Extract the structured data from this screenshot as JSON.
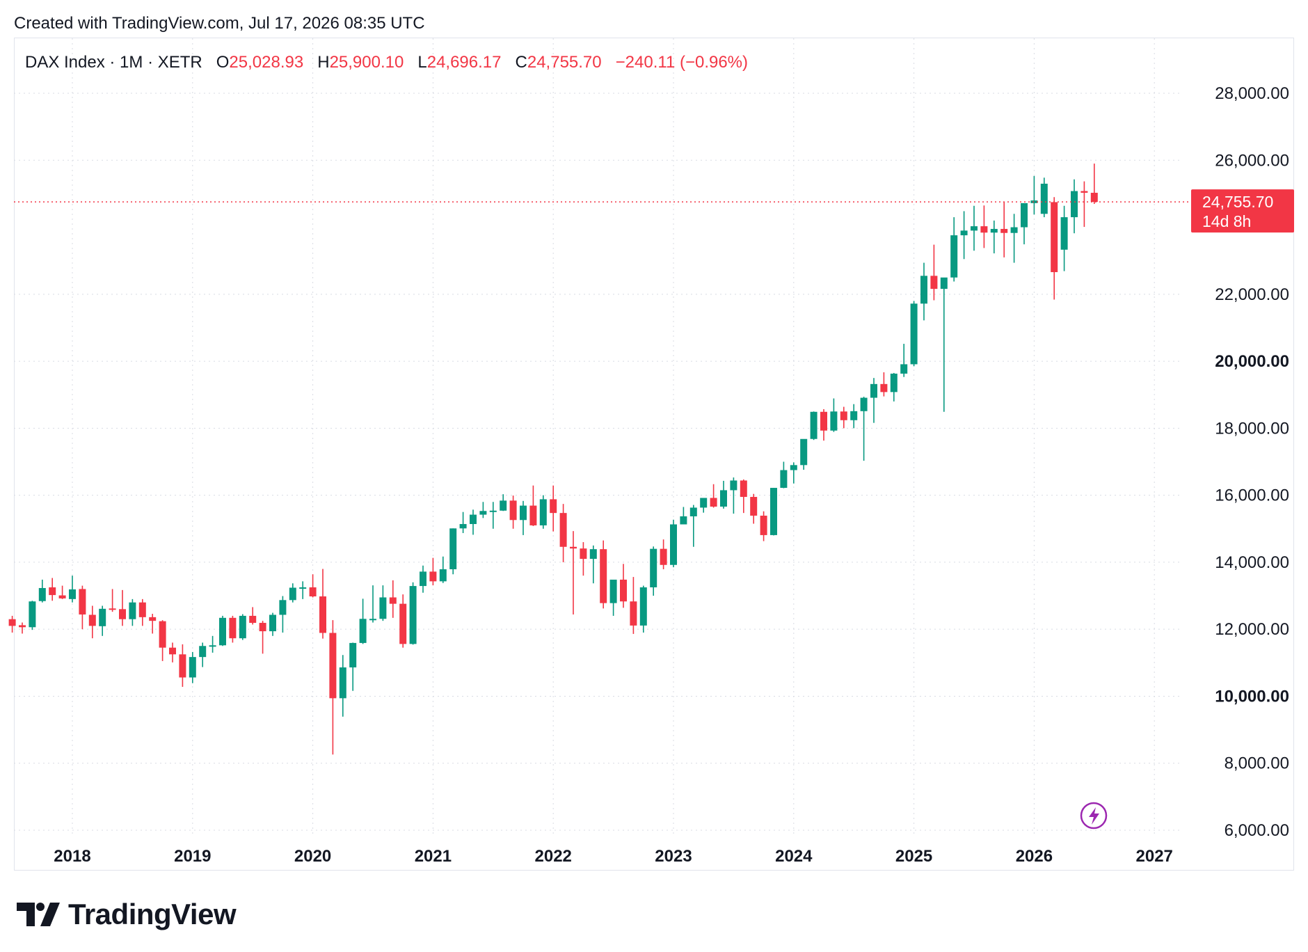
{
  "header": {
    "created_text": "Created with TradingView.com, Jul 17, 2026 08:35 UTC"
  },
  "legend": {
    "symbol": "DAX Index · 1M · XETR",
    "o_label": "O",
    "o_value": "25,028.93",
    "h_label": "H",
    "h_value": "25,900.10",
    "l_label": "L",
    "l_value": "24,696.17",
    "c_label": "C",
    "c_value": "24,755.70",
    "change": "−240.11 (−0.96%)"
  },
  "price_tag": {
    "price": "24,755.70",
    "countdown": "14d 8h"
  },
  "brand": {
    "name": "TradingView"
  },
  "colors": {
    "up": "#089981",
    "down": "#f23645",
    "grid": "#d8dbe3",
    "text": "#131722",
    "accent_purple": "#9c27b0"
  },
  "icons": [
    "flash-icon",
    "tradingview-logo-icon"
  ],
  "chart_data": {
    "type": "candlestick",
    "timeframe": "1M",
    "ylim": [
      6000,
      28000
    ],
    "y_ticks": [
      {
        "value": 28000,
        "label": "28,000.00",
        "bold": false
      },
      {
        "value": 26000,
        "label": "26,000.00",
        "bold": false
      },
      {
        "value": 22000,
        "label": "22,000.00",
        "bold": false
      },
      {
        "value": 20000,
        "label": "20,000.00",
        "bold": true
      },
      {
        "value": 18000,
        "label": "18,000.00",
        "bold": false
      },
      {
        "value": 16000,
        "label": "16,000.00",
        "bold": false
      },
      {
        "value": 14000,
        "label": "14,000.00",
        "bold": false
      },
      {
        "value": 12000,
        "label": "12,000.00",
        "bold": false
      },
      {
        "value": 10000,
        "label": "10,000.00",
        "bold": true
      },
      {
        "value": 8000,
        "label": "8,000.00",
        "bold": false
      },
      {
        "value": 6000,
        "label": "6,000.00",
        "bold": false
      }
    ],
    "x_ticks": [
      "2018",
      "2019",
      "2020",
      "2021",
      "2022",
      "2023",
      "2024",
      "2025",
      "2026",
      "2027"
    ],
    "last_price": 24755.7,
    "candles": [
      {
        "date": "2017-07",
        "o": 12300,
        "h": 12400,
        "l": 11900,
        "c": 12100
      },
      {
        "date": "2017-08",
        "o": 12120,
        "h": 12200,
        "l": 11870,
        "c": 12060
      },
      {
        "date": "2017-09",
        "o": 12060,
        "h": 12850,
        "l": 11980,
        "c": 12830
      },
      {
        "date": "2017-10",
        "o": 12840,
        "h": 13480,
        "l": 12800,
        "c": 13230
      },
      {
        "date": "2017-11",
        "o": 13250,
        "h": 13530,
        "l": 12850,
        "c": 13020
      },
      {
        "date": "2017-12",
        "o": 13010,
        "h": 13300,
        "l": 12900,
        "c": 12920
      },
      {
        "date": "2018-01",
        "o": 12900,
        "h": 13600,
        "l": 12800,
        "c": 13190
      },
      {
        "date": "2018-02",
        "o": 13200,
        "h": 13300,
        "l": 12000,
        "c": 12440
      },
      {
        "date": "2018-03",
        "o": 12430,
        "h": 12700,
        "l": 11730,
        "c": 12100
      },
      {
        "date": "2018-04",
        "o": 12090,
        "h": 12700,
        "l": 11800,
        "c": 12610
      },
      {
        "date": "2018-05",
        "o": 12620,
        "h": 13200,
        "l": 12520,
        "c": 12600
      },
      {
        "date": "2018-06",
        "o": 12600,
        "h": 13170,
        "l": 12100,
        "c": 12300
      },
      {
        "date": "2018-07",
        "o": 12300,
        "h": 12900,
        "l": 12100,
        "c": 12800
      },
      {
        "date": "2018-08",
        "o": 12800,
        "h": 12900,
        "l": 12100,
        "c": 12360
      },
      {
        "date": "2018-09",
        "o": 12360,
        "h": 12460,
        "l": 11870,
        "c": 12250
      },
      {
        "date": "2018-10",
        "o": 12240,
        "h": 12270,
        "l": 11050,
        "c": 11450
      },
      {
        "date": "2018-11",
        "o": 11450,
        "h": 11600,
        "l": 11010,
        "c": 11250
      },
      {
        "date": "2018-12",
        "o": 11250,
        "h": 11550,
        "l": 10280,
        "c": 10560
      },
      {
        "date": "2019-01",
        "o": 10560,
        "h": 11320,
        "l": 10390,
        "c": 11170
      },
      {
        "date": "2019-02",
        "o": 11170,
        "h": 11600,
        "l": 10870,
        "c": 11500
      },
      {
        "date": "2019-03",
        "o": 11500,
        "h": 11800,
        "l": 11300,
        "c": 11520
      },
      {
        "date": "2019-04",
        "o": 11520,
        "h": 12400,
        "l": 11500,
        "c": 12340
      },
      {
        "date": "2019-05",
        "o": 12340,
        "h": 12400,
        "l": 11600,
        "c": 11730
      },
      {
        "date": "2019-06",
        "o": 11730,
        "h": 12450,
        "l": 11680,
        "c": 12400
      },
      {
        "date": "2019-07",
        "o": 12400,
        "h": 12660,
        "l": 12140,
        "c": 12190
      },
      {
        "date": "2019-08",
        "o": 12190,
        "h": 12250,
        "l": 11270,
        "c": 11940
      },
      {
        "date": "2019-09",
        "o": 11940,
        "h": 12490,
        "l": 11800,
        "c": 12430
      },
      {
        "date": "2019-10",
        "o": 12430,
        "h": 12990,
        "l": 11900,
        "c": 12870
      },
      {
        "date": "2019-11",
        "o": 12870,
        "h": 13370,
        "l": 12800,
        "c": 13240
      },
      {
        "date": "2019-12",
        "o": 13240,
        "h": 13430,
        "l": 12900,
        "c": 13250
      },
      {
        "date": "2020-01",
        "o": 13250,
        "h": 13640,
        "l": 12950,
        "c": 12980
      },
      {
        "date": "2020-02",
        "o": 12980,
        "h": 13800,
        "l": 11720,
        "c": 11890
      },
      {
        "date": "2020-03",
        "o": 11890,
        "h": 12270,
        "l": 8260,
        "c": 9940
      },
      {
        "date": "2020-04",
        "o": 9940,
        "h": 11230,
        "l": 9390,
        "c": 10860
      },
      {
        "date": "2020-05",
        "o": 10860,
        "h": 11600,
        "l": 10160,
        "c": 11590
      },
      {
        "date": "2020-06",
        "o": 11590,
        "h": 12910,
        "l": 11560,
        "c": 12310
      },
      {
        "date": "2020-07",
        "o": 12310,
        "h": 13310,
        "l": 12200,
        "c": 12310
      },
      {
        "date": "2020-08",
        "o": 12310,
        "h": 13310,
        "l": 12250,
        "c": 12950
      },
      {
        "date": "2020-09",
        "o": 12950,
        "h": 13460,
        "l": 12340,
        "c": 12760
      },
      {
        "date": "2020-10",
        "o": 12760,
        "h": 13040,
        "l": 11450,
        "c": 11560
      },
      {
        "date": "2020-11",
        "o": 11560,
        "h": 13400,
        "l": 11540,
        "c": 13290
      },
      {
        "date": "2020-12",
        "o": 13290,
        "h": 13900,
        "l": 13090,
        "c": 13720
      },
      {
        "date": "2021-01",
        "o": 13720,
        "h": 14130,
        "l": 13310,
        "c": 13430
      },
      {
        "date": "2021-02",
        "o": 13430,
        "h": 14170,
        "l": 13380,
        "c": 13790
      },
      {
        "date": "2021-03",
        "o": 13790,
        "h": 15010,
        "l": 13640,
        "c": 15010
      },
      {
        "date": "2021-04",
        "o": 15010,
        "h": 15500,
        "l": 14870,
        "c": 15140
      },
      {
        "date": "2021-05",
        "o": 15140,
        "h": 15570,
        "l": 14820,
        "c": 15420
      },
      {
        "date": "2021-06",
        "o": 15420,
        "h": 15800,
        "l": 15320,
        "c": 15530
      },
      {
        "date": "2021-07",
        "o": 15530,
        "h": 15800,
        "l": 15000,
        "c": 15540
      },
      {
        "date": "2021-08",
        "o": 15540,
        "h": 16030,
        "l": 15530,
        "c": 15840
      },
      {
        "date": "2021-09",
        "o": 15840,
        "h": 15990,
        "l": 15000,
        "c": 15260
      },
      {
        "date": "2021-10",
        "o": 15260,
        "h": 15830,
        "l": 14810,
        "c": 15690
      },
      {
        "date": "2021-11",
        "o": 15690,
        "h": 16290,
        "l": 15080,
        "c": 15100
      },
      {
        "date": "2021-12",
        "o": 15100,
        "h": 16000,
        "l": 15000,
        "c": 15880
      },
      {
        "date": "2022-01",
        "o": 15880,
        "h": 16290,
        "l": 14920,
        "c": 15470
      },
      {
        "date": "2022-02",
        "o": 15470,
        "h": 15740,
        "l": 14000,
        "c": 14460
      },
      {
        "date": "2022-03",
        "o": 14460,
        "h": 14930,
        "l": 12440,
        "c": 14410
      },
      {
        "date": "2022-04",
        "o": 14410,
        "h": 14600,
        "l": 13600,
        "c": 14100
      },
      {
        "date": "2022-05",
        "o": 14100,
        "h": 14500,
        "l": 13370,
        "c": 14390
      },
      {
        "date": "2022-06",
        "o": 14390,
        "h": 14650,
        "l": 12620,
        "c": 12780
      },
      {
        "date": "2022-07",
        "o": 12780,
        "h": 13380,
        "l": 12400,
        "c": 13480
      },
      {
        "date": "2022-08",
        "o": 13480,
        "h": 13950,
        "l": 12640,
        "c": 12830
      },
      {
        "date": "2022-09",
        "o": 12830,
        "h": 13560,
        "l": 11860,
        "c": 12110
      },
      {
        "date": "2022-10",
        "o": 12110,
        "h": 13300,
        "l": 11900,
        "c": 13250
      },
      {
        "date": "2022-11",
        "o": 13250,
        "h": 14470,
        "l": 13000,
        "c": 14400
      },
      {
        "date": "2022-12",
        "o": 14400,
        "h": 14680,
        "l": 13790,
        "c": 13920
      },
      {
        "date": "2023-01",
        "o": 13920,
        "h": 15270,
        "l": 13850,
        "c": 15130
      },
      {
        "date": "2023-02",
        "o": 15130,
        "h": 15650,
        "l": 15140,
        "c": 15370
      },
      {
        "date": "2023-03",
        "o": 15370,
        "h": 15710,
        "l": 14460,
        "c": 15630
      },
      {
        "date": "2023-04",
        "o": 15630,
        "h": 15920,
        "l": 15480,
        "c": 15920
      },
      {
        "date": "2023-05",
        "o": 15920,
        "h": 16330,
        "l": 15630,
        "c": 15660
      },
      {
        "date": "2023-06",
        "o": 15660,
        "h": 16430,
        "l": 15600,
        "c": 16150
      },
      {
        "date": "2023-07",
        "o": 16150,
        "h": 16530,
        "l": 15450,
        "c": 16440
      },
      {
        "date": "2023-08",
        "o": 16440,
        "h": 16470,
        "l": 15470,
        "c": 15950
      },
      {
        "date": "2023-09",
        "o": 15950,
        "h": 16040,
        "l": 15150,
        "c": 15390
      },
      {
        "date": "2023-10",
        "o": 15390,
        "h": 15520,
        "l": 14630,
        "c": 14810
      },
      {
        "date": "2023-11",
        "o": 14810,
        "h": 16220,
        "l": 14800,
        "c": 16220
      },
      {
        "date": "2023-12",
        "o": 16220,
        "h": 17000,
        "l": 16210,
        "c": 16750
      },
      {
        "date": "2024-01",
        "o": 16750,
        "h": 16980,
        "l": 16350,
        "c": 16900
      },
      {
        "date": "2024-02",
        "o": 16900,
        "h": 17520,
        "l": 16760,
        "c": 17680
      },
      {
        "date": "2024-03",
        "o": 17680,
        "h": 18500,
        "l": 17650,
        "c": 18490
      },
      {
        "date": "2024-04",
        "o": 18490,
        "h": 18570,
        "l": 17630,
        "c": 17930
      },
      {
        "date": "2024-05",
        "o": 17930,
        "h": 18890,
        "l": 17890,
        "c": 18500
      },
      {
        "date": "2024-06",
        "o": 18500,
        "h": 18640,
        "l": 18000,
        "c": 18240
      },
      {
        "date": "2024-07",
        "o": 18240,
        "h": 18720,
        "l": 18000,
        "c": 18510
      },
      {
        "date": "2024-08",
        "o": 18510,
        "h": 18940,
        "l": 17030,
        "c": 18910
      },
      {
        "date": "2024-09",
        "o": 18910,
        "h": 19500,
        "l": 18160,
        "c": 19320
      },
      {
        "date": "2024-10",
        "o": 19320,
        "h": 19670,
        "l": 18950,
        "c": 19080
      },
      {
        "date": "2024-11",
        "o": 19080,
        "h": 19650,
        "l": 18800,
        "c": 19630
      },
      {
        "date": "2024-12",
        "o": 19630,
        "h": 20520,
        "l": 19530,
        "c": 19910
      },
      {
        "date": "2025-01",
        "o": 19910,
        "h": 21800,
        "l": 19850,
        "c": 21720
      },
      {
        "date": "2025-02",
        "o": 21720,
        "h": 22940,
        "l": 21220,
        "c": 22550
      },
      {
        "date": "2025-03",
        "o": 22550,
        "h": 23480,
        "l": 21820,
        "c": 22160
      },
      {
        "date": "2025-04",
        "o": 22160,
        "h": 22440,
        "l": 18490,
        "c": 22500
      },
      {
        "date": "2025-05",
        "o": 22500,
        "h": 24300,
        "l": 22380,
        "c": 23760
      },
      {
        "date": "2025-06",
        "o": 23760,
        "h": 24480,
        "l": 23050,
        "c": 23900
      },
      {
        "date": "2025-07",
        "o": 23900,
        "h": 24640,
        "l": 23300,
        "c": 24030
      },
      {
        "date": "2025-08",
        "o": 24030,
        "h": 24650,
        "l": 23380,
        "c": 23840
      },
      {
        "date": "2025-09",
        "o": 23840,
        "h": 24200,
        "l": 23220,
        "c": 23950
      },
      {
        "date": "2025-10",
        "o": 23950,
        "h": 24760,
        "l": 23100,
        "c": 23830
      },
      {
        "date": "2025-11",
        "o": 23830,
        "h": 24400,
        "l": 22940,
        "c": 24000
      },
      {
        "date": "2025-12",
        "o": 24000,
        "h": 24600,
        "l": 23490,
        "c": 24720
      },
      {
        "date": "2026-01",
        "o": 24720,
        "h": 25530,
        "l": 24380,
        "c": 24800
      },
      {
        "date": "2026-02",
        "o": 24400,
        "h": 25480,
        "l": 24300,
        "c": 25300
      },
      {
        "date": "2026-03",
        "o": 24750,
        "h": 24900,
        "l": 21840,
        "c": 22660
      },
      {
        "date": "2026-04",
        "o": 23330,
        "h": 24640,
        "l": 22690,
        "c": 24300
      },
      {
        "date": "2026-05",
        "o": 24300,
        "h": 25430,
        "l": 23820,
        "c": 25080
      },
      {
        "date": "2026-06",
        "o": 25080,
        "h": 25370,
        "l": 24010,
        "c": 25030
      },
      {
        "date": "2026-07",
        "o": 25028.93,
        "h": 25900.1,
        "l": 24696.17,
        "c": 24755.7
      }
    ]
  }
}
